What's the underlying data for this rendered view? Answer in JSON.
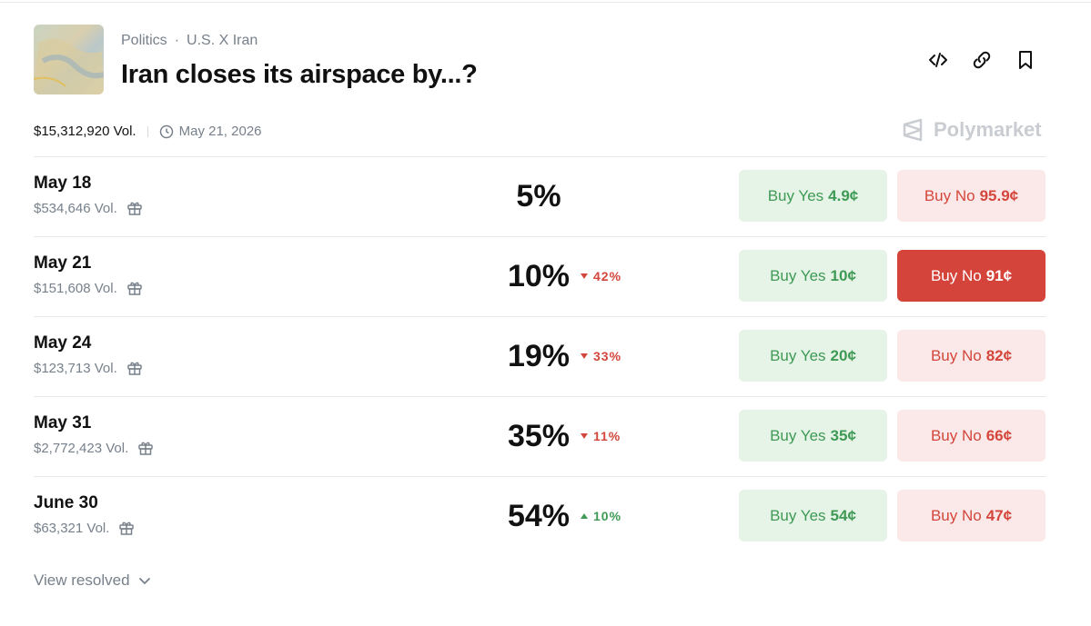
{
  "header": {
    "category": "Politics",
    "separator": "·",
    "tag": "U.S. X Iran",
    "title": "Iran closes its airspace by...?"
  },
  "meta": {
    "volume": "$15,312,920 Vol.",
    "end_date": "May 21, 2026",
    "brand": "Polymarket"
  },
  "rows": [
    {
      "date": "May 18",
      "volume": "$534,646 Vol.",
      "percent": "5%",
      "change": null,
      "change_direction": null,
      "yes_label": "Buy Yes",
      "yes_price": "4.9¢",
      "no_label": "Buy No",
      "no_price": "95.9¢",
      "highlight": null
    },
    {
      "date": "May 21",
      "volume": "$151,608 Vol.",
      "percent": "10%",
      "change": "42%",
      "change_direction": "down",
      "yes_label": "Buy Yes",
      "yes_price": "10¢",
      "no_label": "Buy No",
      "no_price": "91¢",
      "highlight": "no"
    },
    {
      "date": "May 24",
      "volume": "$123,713 Vol.",
      "percent": "19%",
      "change": "33%",
      "change_direction": "down",
      "yes_label": "Buy Yes",
      "yes_price": "20¢",
      "no_label": "Buy No",
      "no_price": "82¢",
      "highlight": null
    },
    {
      "date": "May 31",
      "volume": "$2,772,423 Vol.",
      "percent": "35%",
      "change": "11%",
      "change_direction": "down",
      "yes_label": "Buy Yes",
      "yes_price": "35¢",
      "no_label": "Buy No",
      "no_price": "66¢",
      "highlight": null
    },
    {
      "date": "June 30",
      "volume": "$63,321 Vol.",
      "percent": "54%",
      "change": "10%",
      "change_direction": "up",
      "yes_label": "Buy Yes",
      "yes_price": "54¢",
      "no_label": "Buy No",
      "no_price": "47¢",
      "highlight": null
    }
  ],
  "footer": {
    "link": "View resolved"
  }
}
